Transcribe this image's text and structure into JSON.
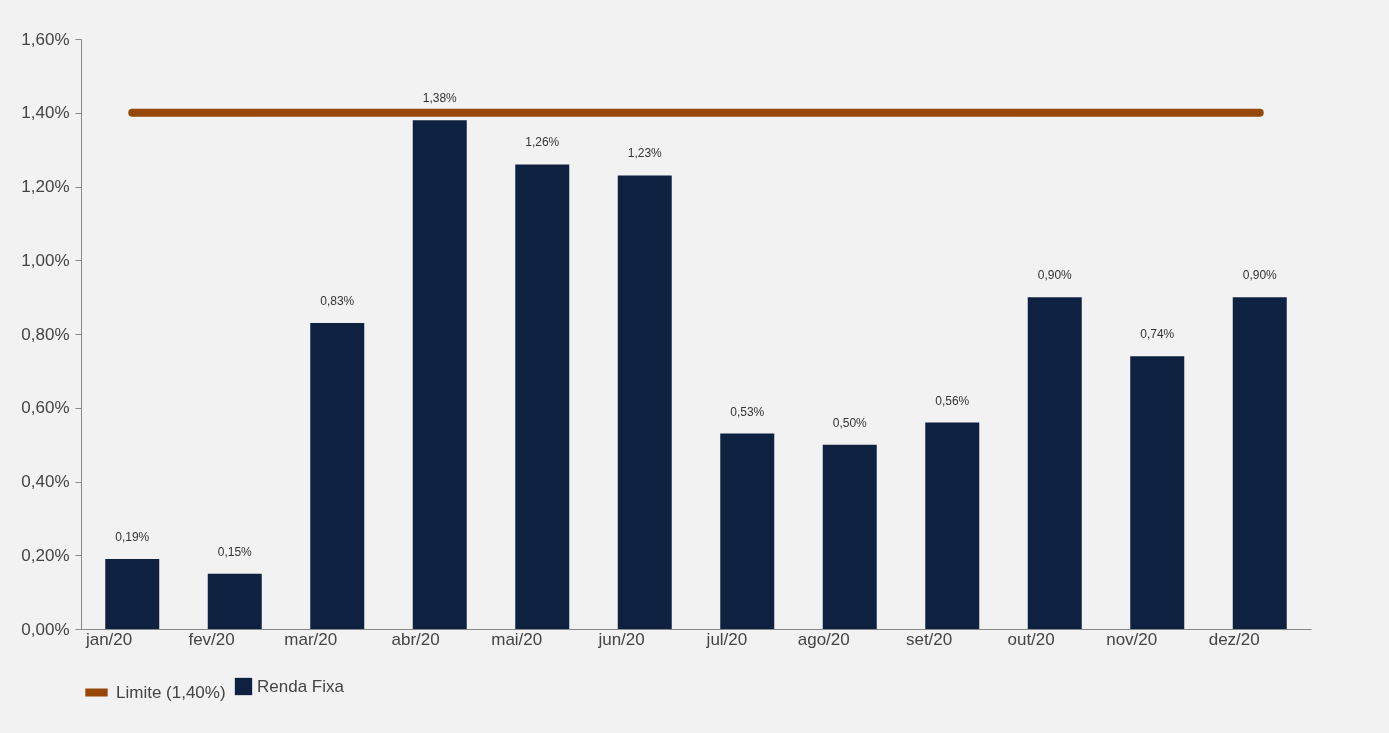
{
  "chart_data": {
    "type": "bar",
    "categories": [
      "jan/20",
      "fev/20",
      "mar/20",
      "abr/20",
      "mai/20",
      "jun/20",
      "jul/20",
      "ago/20",
      "set/20",
      "out/20",
      "nov/20",
      "dez/20"
    ],
    "series": [
      {
        "name": "Renda Fixa",
        "color": "#0f2140",
        "values": [
          0.19,
          0.15,
          0.83,
          1.38,
          1.26,
          1.23,
          0.53,
          0.5,
          0.56,
          0.9,
          0.74,
          0.9
        ],
        "value_labels": [
          "0,19%",
          "0,15%",
          "0,83%",
          "1,38%",
          "1,26%",
          "1,23%",
          "0,53%",
          "0,50%",
          "0,56%",
          "0,90%",
          "0,74%",
          "0,90%"
        ]
      },
      {
        "name": "Limite (1,40%)",
        "type": "line",
        "color": "#974706",
        "values": [
          1.4,
          1.4,
          1.4,
          1.4,
          1.4,
          1.4,
          1.4,
          1.4,
          1.4,
          1.4,
          1.4,
          1.4
        ]
      }
    ],
    "ylim": [
      0,
      1.6
    ],
    "yticks": [
      {
        "value": 0,
        "label": "0,00%"
      },
      {
        "value": 0.2,
        "label": "0,20%"
      },
      {
        "value": 0.4,
        "label": "0,40%"
      },
      {
        "value": 0.6,
        "label": "0,60%"
      },
      {
        "value": 0.8,
        "label": "0,80%"
      },
      {
        "value": 1.0,
        "label": "1,00%"
      },
      {
        "value": 1.2,
        "label": "1,20%"
      },
      {
        "value": 1.4,
        "label": "1,40%"
      },
      {
        "value": 1.6,
        "label": "1,60%"
      }
    ],
    "grid": false,
    "legend": "bottom"
  }
}
